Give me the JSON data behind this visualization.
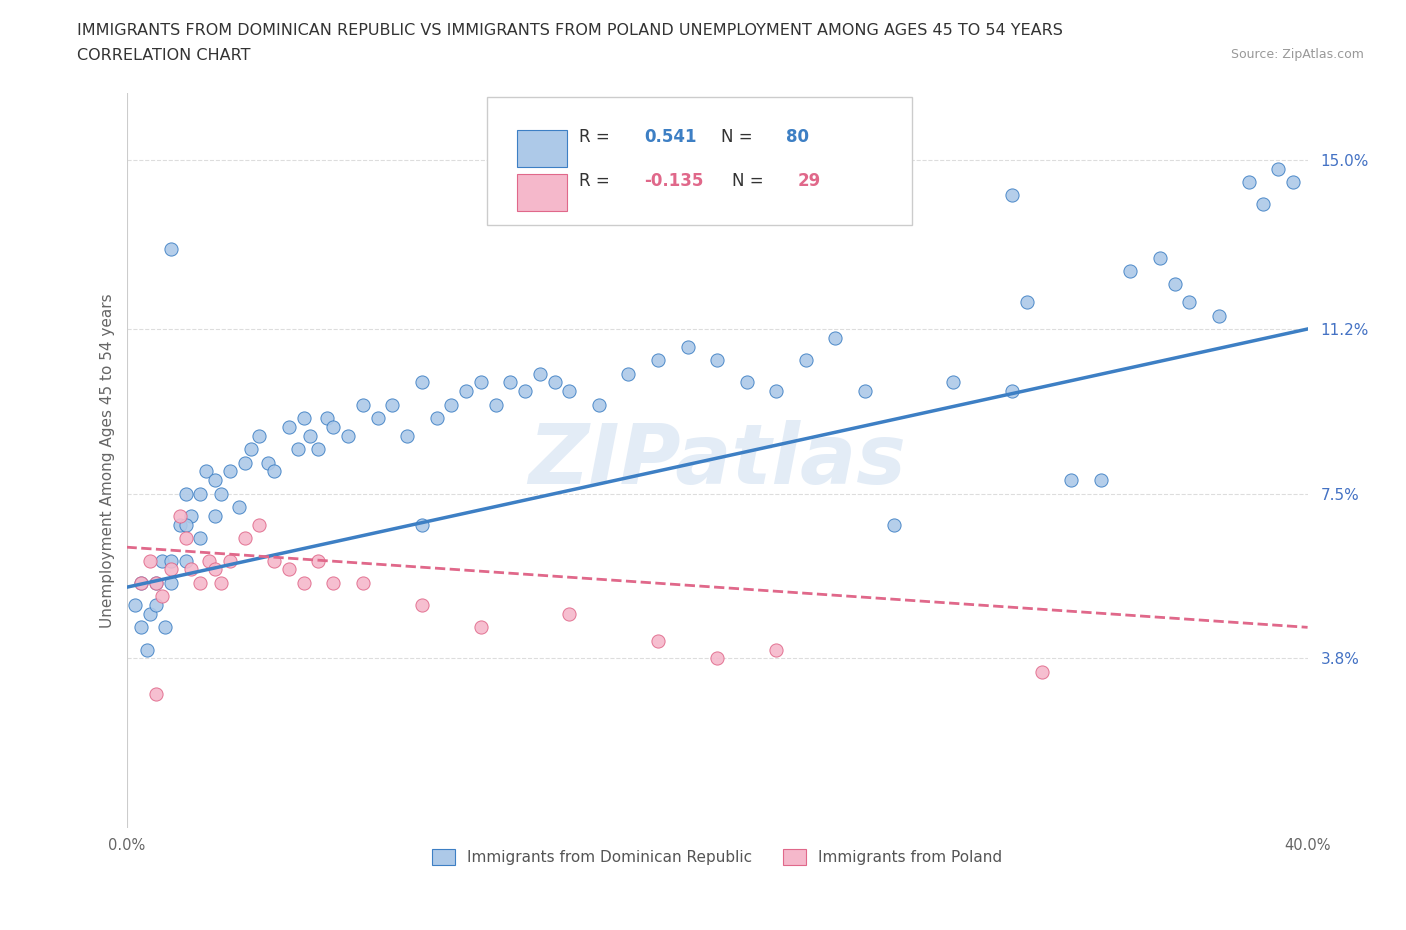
{
  "title_line1": "IMMIGRANTS FROM DOMINICAN REPUBLIC VS IMMIGRANTS FROM POLAND UNEMPLOYMENT AMONG AGES 45 TO 54 YEARS",
  "title_line2": "CORRELATION CHART",
  "source_text": "Source: ZipAtlas.com",
  "ylabel": "Unemployment Among Ages 45 to 54 years",
  "xmin": 0.0,
  "xmax": 0.4,
  "ymin": 0.0,
  "ymax": 0.165,
  "yticks": [
    0.038,
    0.075,
    0.112,
    0.15
  ],
  "ytick_labels": [
    "3.8%",
    "7.5%",
    "11.2%",
    "15.0%"
  ],
  "xticks": [
    0.0,
    0.1,
    0.2,
    0.3,
    0.4
  ],
  "xtick_labels": [
    "0.0%",
    "",
    "",
    "",
    "40.0%"
  ],
  "watermark": "ZIPatlas",
  "blue_color": "#adc9e8",
  "pink_color": "#f5b8cb",
  "blue_line_color": "#3d7fc4",
  "pink_line_color": "#e0688a",
  "r_blue": 0.541,
  "n_blue": 80,
  "r_pink": -0.135,
  "n_pink": 29,
  "scatter_blue": [
    [
      0.003,
      0.05
    ],
    [
      0.005,
      0.045
    ],
    [
      0.005,
      0.055
    ],
    [
      0.007,
      0.04
    ],
    [
      0.008,
      0.048
    ],
    [
      0.01,
      0.055
    ],
    [
      0.01,
      0.05
    ],
    [
      0.012,
      0.06
    ],
    [
      0.013,
      0.045
    ],
    [
      0.015,
      0.06
    ],
    [
      0.015,
      0.055
    ],
    [
      0.018,
      0.068
    ],
    [
      0.02,
      0.075
    ],
    [
      0.02,
      0.06
    ],
    [
      0.022,
      0.07
    ],
    [
      0.025,
      0.075
    ],
    [
      0.025,
      0.065
    ],
    [
      0.027,
      0.08
    ],
    [
      0.03,
      0.078
    ],
    [
      0.03,
      0.07
    ],
    [
      0.032,
      0.075
    ],
    [
      0.035,
      0.08
    ],
    [
      0.038,
      0.072
    ],
    [
      0.04,
      0.082
    ],
    [
      0.042,
      0.085
    ],
    [
      0.045,
      0.088
    ],
    [
      0.048,
      0.082
    ],
    [
      0.05,
      0.08
    ],
    [
      0.055,
      0.09
    ],
    [
      0.058,
      0.085
    ],
    [
      0.06,
      0.092
    ],
    [
      0.062,
      0.088
    ],
    [
      0.065,
      0.085
    ],
    [
      0.068,
      0.092
    ],
    [
      0.07,
      0.09
    ],
    [
      0.075,
      0.088
    ],
    [
      0.08,
      0.095
    ],
    [
      0.085,
      0.092
    ],
    [
      0.09,
      0.095
    ],
    [
      0.095,
      0.088
    ],
    [
      0.1,
      0.1
    ],
    [
      0.105,
      0.092
    ],
    [
      0.11,
      0.095
    ],
    [
      0.115,
      0.098
    ],
    [
      0.12,
      0.1
    ],
    [
      0.125,
      0.095
    ],
    [
      0.13,
      0.1
    ],
    [
      0.135,
      0.098
    ],
    [
      0.14,
      0.102
    ],
    [
      0.145,
      0.1
    ],
    [
      0.15,
      0.098
    ],
    [
      0.16,
      0.095
    ],
    [
      0.17,
      0.102
    ],
    [
      0.18,
      0.105
    ],
    [
      0.19,
      0.108
    ],
    [
      0.2,
      0.105
    ],
    [
      0.21,
      0.1
    ],
    [
      0.22,
      0.098
    ],
    [
      0.23,
      0.105
    ],
    [
      0.24,
      0.11
    ],
    [
      0.25,
      0.098
    ],
    [
      0.26,
      0.068
    ],
    [
      0.28,
      0.1
    ],
    [
      0.3,
      0.098
    ],
    [
      0.305,
      0.118
    ],
    [
      0.32,
      0.078
    ],
    [
      0.33,
      0.078
    ],
    [
      0.34,
      0.125
    ],
    [
      0.35,
      0.128
    ],
    [
      0.355,
      0.122
    ],
    [
      0.36,
      0.118
    ],
    [
      0.37,
      0.115
    ],
    [
      0.38,
      0.145
    ],
    [
      0.385,
      0.14
    ],
    [
      0.39,
      0.148
    ],
    [
      0.395,
      0.145
    ],
    [
      0.3,
      0.142
    ],
    [
      0.015,
      0.13
    ],
    [
      0.02,
      0.068
    ],
    [
      0.1,
      0.068
    ]
  ],
  "scatter_pink": [
    [
      0.005,
      0.055
    ],
    [
      0.008,
      0.06
    ],
    [
      0.01,
      0.055
    ],
    [
      0.012,
      0.052
    ],
    [
      0.015,
      0.058
    ],
    [
      0.018,
      0.07
    ],
    [
      0.02,
      0.065
    ],
    [
      0.022,
      0.058
    ],
    [
      0.025,
      0.055
    ],
    [
      0.028,
      0.06
    ],
    [
      0.03,
      0.058
    ],
    [
      0.032,
      0.055
    ],
    [
      0.035,
      0.06
    ],
    [
      0.04,
      0.065
    ],
    [
      0.045,
      0.068
    ],
    [
      0.05,
      0.06
    ],
    [
      0.055,
      0.058
    ],
    [
      0.06,
      0.055
    ],
    [
      0.065,
      0.06
    ],
    [
      0.07,
      0.055
    ],
    [
      0.08,
      0.055
    ],
    [
      0.1,
      0.05
    ],
    [
      0.12,
      0.045
    ],
    [
      0.15,
      0.048
    ],
    [
      0.18,
      0.042
    ],
    [
      0.2,
      0.038
    ],
    [
      0.22,
      0.04
    ],
    [
      0.31,
      0.035
    ],
    [
      0.01,
      0.03
    ]
  ],
  "blue_trend_x": [
    0.0,
    0.4
  ],
  "blue_trend_y": [
    0.054,
    0.112
  ],
  "pink_trend_x": [
    0.0,
    0.4
  ],
  "pink_trend_y": [
    0.063,
    0.045
  ],
  "grid_color": "#dddddd",
  "background_color": "#ffffff",
  "title_fontsize": 11.5,
  "axis_label_fontsize": 11,
  "tick_fontsize": 10.5,
  "tick_color": "#4472c4",
  "legend_label1": "Immigrants from Dominican Republic",
  "legend_label2": "Immigrants from Poland"
}
